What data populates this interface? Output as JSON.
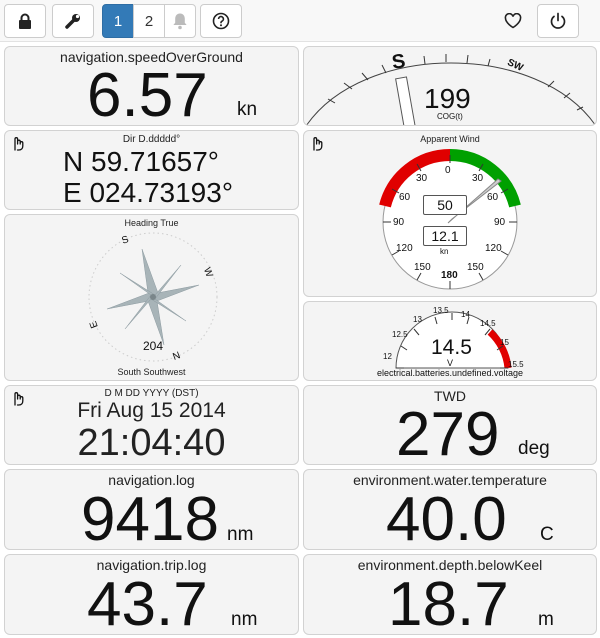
{
  "toolbar": {
    "lock_icon": "lock-icon",
    "settings_icon": "wrench-icon",
    "pages": [
      "1",
      "2"
    ],
    "active_page": "1",
    "alarm_icon": "bell-icon",
    "help_icon": "help-icon",
    "favorite_icon": "heart-icon",
    "power_icon": "power-icon"
  },
  "colors": {
    "accent": "#337ab7",
    "red_zone": "#e00000",
    "green_zone": "#00a000"
  },
  "sog": {
    "title": "navigation.speedOverGround",
    "value": "6.57",
    "unit": "kn"
  },
  "cog": {
    "value": "199",
    "label": "COG(t)",
    "s": "S",
    "sw": "SW"
  },
  "position": {
    "title": "Dir D.ddddd°",
    "lat": "N 59.71657°",
    "lon": "E 024.73193°"
  },
  "wind": {
    "title": "Apparent Wind",
    "angle": "50",
    "speed": "12.1",
    "speed_unit": "kn",
    "labels": {
      "a0": "0",
      "a30l": "30",
      "a30r": "30",
      "a60l": "60",
      "a60r": "60",
      "a90l": "90",
      "a90r": "90",
      "a120l": "120",
      "a120r": "120",
      "a150l": "150",
      "a150r": "150",
      "a180": "180"
    }
  },
  "heading": {
    "title": "Heading True",
    "value": "204",
    "subtitle": "South Southwest",
    "s": "S",
    "w": "W",
    "n": "N",
    "e": "E"
  },
  "voltage": {
    "title": "electrical.batteries.undefined.voltage",
    "value": "14.5",
    "unit": "V",
    "ticks": {
      "t12": "12",
      "t125": "12.5",
      "t13": "13",
      "t135": "13.5",
      "t14": "14",
      "t145": "14.5",
      "t15": "15",
      "t155": "15.5"
    }
  },
  "datetime": {
    "title": "D M DD YYYY (DST)",
    "date": "Fri Aug 15 2014",
    "time": "21:04:40"
  },
  "twd": {
    "title": "TWD",
    "value": "279",
    "unit": "deg"
  },
  "log": {
    "title": "navigation.log",
    "value": "9418",
    "unit": "nm"
  },
  "water_temp": {
    "title": "environment.water.temperature",
    "value": "40.0",
    "unit": "C"
  },
  "trip": {
    "title": "navigation.trip.log",
    "value": "43.7",
    "unit": "nm"
  },
  "depth": {
    "title": "environment.depth.belowKeel",
    "value": "18.7",
    "unit": "m"
  }
}
